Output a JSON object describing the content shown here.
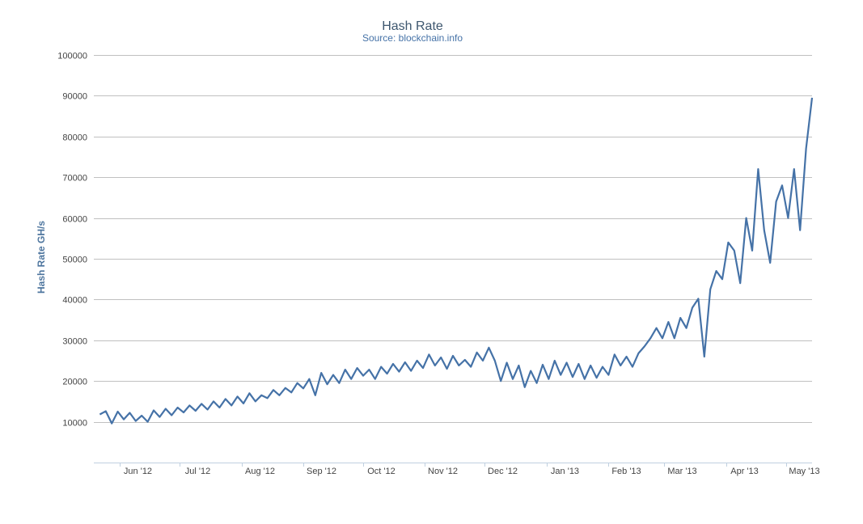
{
  "chart_data": {
    "type": "line",
    "title": "Hash Rate",
    "subtitle": "Source: blockchain.info",
    "xlabel": "",
    "ylabel": "Hash Rate GH/s",
    "ylim": [
      0,
      100000
    ],
    "yticks": [
      10000,
      20000,
      30000,
      40000,
      50000,
      60000,
      70000,
      80000,
      90000,
      100000
    ],
    "xlim": [
      "2012-05-19",
      "2013-05-14"
    ],
    "xticks": [
      {
        "date": "2012-06-01",
        "label": "Jun '12"
      },
      {
        "date": "2012-07-01",
        "label": "Jul '12"
      },
      {
        "date": "2012-08-01",
        "label": "Aug '12"
      },
      {
        "date": "2012-09-01",
        "label": "Sep '12"
      },
      {
        "date": "2012-10-01",
        "label": "Oct '12"
      },
      {
        "date": "2012-11-01",
        "label": "Nov '12"
      },
      {
        "date": "2012-12-01",
        "label": "Dec '12"
      },
      {
        "date": "2013-01-01",
        "label": "Jan '13"
      },
      {
        "date": "2013-02-01",
        "label": "Feb '13"
      },
      {
        "date": "2013-03-01",
        "label": "Mar '13"
      },
      {
        "date": "2013-04-01",
        "label": "Apr '13"
      },
      {
        "date": "2013-05-01",
        "label": "May '13"
      }
    ],
    "grid": true,
    "legend": "none",
    "line_color": "#4572a7",
    "series": [
      {
        "points": [
          [
            "2012-05-22",
            11800
          ],
          [
            "2012-05-25",
            12600
          ],
          [
            "2012-05-28",
            9600
          ],
          [
            "2012-05-31",
            12500
          ],
          [
            "2012-06-03",
            10600
          ],
          [
            "2012-06-06",
            12200
          ],
          [
            "2012-06-09",
            10200
          ],
          [
            "2012-06-12",
            11500
          ],
          [
            "2012-06-15",
            10000
          ],
          [
            "2012-06-18",
            12800
          ],
          [
            "2012-06-21",
            11200
          ],
          [
            "2012-06-24",
            13200
          ],
          [
            "2012-06-27",
            11600
          ],
          [
            "2012-06-30",
            13500
          ],
          [
            "2012-07-03",
            12300
          ],
          [
            "2012-07-06",
            14000
          ],
          [
            "2012-07-09",
            12700
          ],
          [
            "2012-07-12",
            14400
          ],
          [
            "2012-07-15",
            13000
          ],
          [
            "2012-07-18",
            15000
          ],
          [
            "2012-07-21",
            13500
          ],
          [
            "2012-07-24",
            15600
          ],
          [
            "2012-07-27",
            14000
          ],
          [
            "2012-07-30",
            16200
          ],
          [
            "2012-08-02",
            14500
          ],
          [
            "2012-08-05",
            17000
          ],
          [
            "2012-08-08",
            15000
          ],
          [
            "2012-08-11",
            16500
          ],
          [
            "2012-08-14",
            15800
          ],
          [
            "2012-08-17",
            17800
          ],
          [
            "2012-08-20",
            16500
          ],
          [
            "2012-08-23",
            18300
          ],
          [
            "2012-08-26",
            17200
          ],
          [
            "2012-08-29",
            19500
          ],
          [
            "2012-09-01",
            18200
          ],
          [
            "2012-09-04",
            20500
          ],
          [
            "2012-09-07",
            16500
          ],
          [
            "2012-09-10",
            22000
          ],
          [
            "2012-09-13",
            19200
          ],
          [
            "2012-09-16",
            21500
          ],
          [
            "2012-09-19",
            19500
          ],
          [
            "2012-09-22",
            22800
          ],
          [
            "2012-09-25",
            20500
          ],
          [
            "2012-09-28",
            23200
          ],
          [
            "2012-10-01",
            21300
          ],
          [
            "2012-10-04",
            22800
          ],
          [
            "2012-10-07",
            20500
          ],
          [
            "2012-10-10",
            23500
          ],
          [
            "2012-10-13",
            21800
          ],
          [
            "2012-10-16",
            24200
          ],
          [
            "2012-10-19",
            22300
          ],
          [
            "2012-10-22",
            24600
          ],
          [
            "2012-10-25",
            22500
          ],
          [
            "2012-10-28",
            25000
          ],
          [
            "2012-10-31",
            23200
          ],
          [
            "2012-11-03",
            26500
          ],
          [
            "2012-11-06",
            23800
          ],
          [
            "2012-11-09",
            25800
          ],
          [
            "2012-11-12",
            23000
          ],
          [
            "2012-11-15",
            26200
          ],
          [
            "2012-11-18",
            23800
          ],
          [
            "2012-11-21",
            25200
          ],
          [
            "2012-11-24",
            23500
          ],
          [
            "2012-11-27",
            27000
          ],
          [
            "2012-11-30",
            25000
          ],
          [
            "2012-12-03",
            28200
          ],
          [
            "2012-12-06",
            25000
          ],
          [
            "2012-12-09",
            20000
          ],
          [
            "2012-12-12",
            24500
          ],
          [
            "2012-12-15",
            20500
          ],
          [
            "2012-12-18",
            23800
          ],
          [
            "2012-12-21",
            18500
          ],
          [
            "2012-12-24",
            22500
          ],
          [
            "2012-12-27",
            19500
          ],
          [
            "2012-12-30",
            24000
          ],
          [
            "2013-01-02",
            20500
          ],
          [
            "2013-01-05",
            25000
          ],
          [
            "2013-01-08",
            21500
          ],
          [
            "2013-01-11",
            24500
          ],
          [
            "2013-01-14",
            21000
          ],
          [
            "2013-01-17",
            24200
          ],
          [
            "2013-01-20",
            20500
          ],
          [
            "2013-01-23",
            23800
          ],
          [
            "2013-01-26",
            20800
          ],
          [
            "2013-01-29",
            23500
          ],
          [
            "2013-02-01",
            21500
          ],
          [
            "2013-02-04",
            26500
          ],
          [
            "2013-02-07",
            23800
          ],
          [
            "2013-02-10",
            26000
          ],
          [
            "2013-02-13",
            23500
          ],
          [
            "2013-02-16",
            26800
          ],
          [
            "2013-02-19",
            28500
          ],
          [
            "2013-02-22",
            30500
          ],
          [
            "2013-02-25",
            33000
          ],
          [
            "2013-02-28",
            30500
          ],
          [
            "2013-03-03",
            34500
          ],
          [
            "2013-03-06",
            30500
          ],
          [
            "2013-03-09",
            35500
          ],
          [
            "2013-03-12",
            33000
          ],
          [
            "2013-03-15",
            38000
          ],
          [
            "2013-03-18",
            40200
          ],
          [
            "2013-03-21",
            26000
          ],
          [
            "2013-03-24",
            42500
          ],
          [
            "2013-03-27",
            47000
          ],
          [
            "2013-03-30",
            45000
          ],
          [
            "2013-04-02",
            54000
          ],
          [
            "2013-04-05",
            52000
          ],
          [
            "2013-04-08",
            44000
          ],
          [
            "2013-04-11",
            60000
          ],
          [
            "2013-04-14",
            52000
          ],
          [
            "2013-04-17",
            72000
          ],
          [
            "2013-04-20",
            57000
          ],
          [
            "2013-04-23",
            49000
          ],
          [
            "2013-04-26",
            64000
          ],
          [
            "2013-04-29",
            68000
          ],
          [
            "2013-05-02",
            60000
          ],
          [
            "2013-05-05",
            72000
          ],
          [
            "2013-05-08",
            57000
          ],
          [
            "2013-05-11",
            77000
          ],
          [
            "2013-05-14",
            89500
          ]
        ]
      }
    ]
  }
}
